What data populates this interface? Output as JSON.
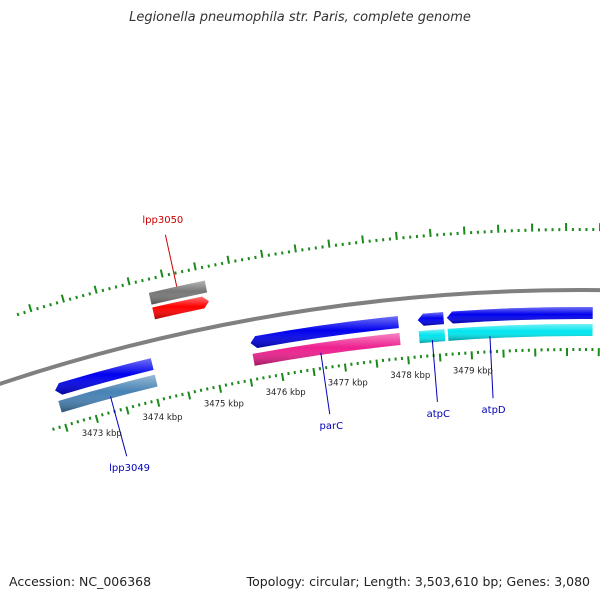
{
  "title": "Legionella pneumophila str. Paris, complete genome",
  "footer": {
    "accession": "Accession: NC_006368",
    "summary": "Topology: circular; Length: 3,503,610 bp; Genes: 3,080"
  },
  "colors": {
    "backbone": "#808080",
    "tick": "#1a8a1a",
    "label_forward": "#cc0000",
    "label_reverse": "#0000bb",
    "tick_label": "#222222"
  },
  "chart_data": {
    "type": "genome-map",
    "view_range_kbp": [
      3472.3,
      3480.9
    ],
    "scale_labels": [
      {
        "text": "3473 kbp",
        "kbp": 3473
      },
      {
        "text": "3474 kbp",
        "kbp": 3474
      },
      {
        "text": "3475 kbp",
        "kbp": 3475
      },
      {
        "text": "3476 kbp",
        "kbp": 3476
      },
      {
        "text": "3477 kbp",
        "kbp": 3477
      },
      {
        "text": "3478 kbp",
        "kbp": 3478
      },
      {
        "text": "3479 kbp",
        "kbp": 3479
      }
    ],
    "genes": [
      {
        "name": "lpp3050",
        "strand": "+",
        "start_kbp": 3474.25,
        "end_kbp": 3475.1,
        "color": "#ff0000",
        "label_color": "#cc0000"
      },
      {
        "name": "lpp3049",
        "strand": "-",
        "start_kbp": 3472.5,
        "end_kbp": 3474.05,
        "color": "#0000ee",
        "label_color": "#0000bb"
      },
      {
        "name": "parC",
        "strand": "-",
        "start_kbp": 3475.6,
        "end_kbp": 3477.9,
        "color": "#0000ee",
        "label_color": "#0000bb"
      },
      {
        "name": "atpC",
        "strand": "-",
        "start_kbp": 3478.2,
        "end_kbp": 3478.6,
        "color": "#0000ee",
        "label_color": "#0000bb"
      },
      {
        "name": "atpD",
        "strand": "-",
        "start_kbp": 3478.65,
        "end_kbp": 3480.9,
        "color": "#0000ee",
        "label_color": "#0000bb"
      }
    ],
    "feature_bars": [
      {
        "strand": "+",
        "start_kbp": 3474.25,
        "end_kbp": 3475.1,
        "color": "#777777"
      },
      {
        "strand": "-",
        "start_kbp": 3472.5,
        "end_kbp": 3474.05,
        "color": "#4682b4"
      },
      {
        "strand": "-",
        "start_kbp": 3475.6,
        "end_kbp": 3477.9,
        "color": "#ee1f8f"
      },
      {
        "strand": "-",
        "start_kbp": 3478.2,
        "end_kbp": 3478.6,
        "color": "#00e5ee"
      },
      {
        "strand": "-",
        "start_kbp": 3478.65,
        "end_kbp": 3480.9,
        "color": "#00e5ee"
      }
    ]
  }
}
